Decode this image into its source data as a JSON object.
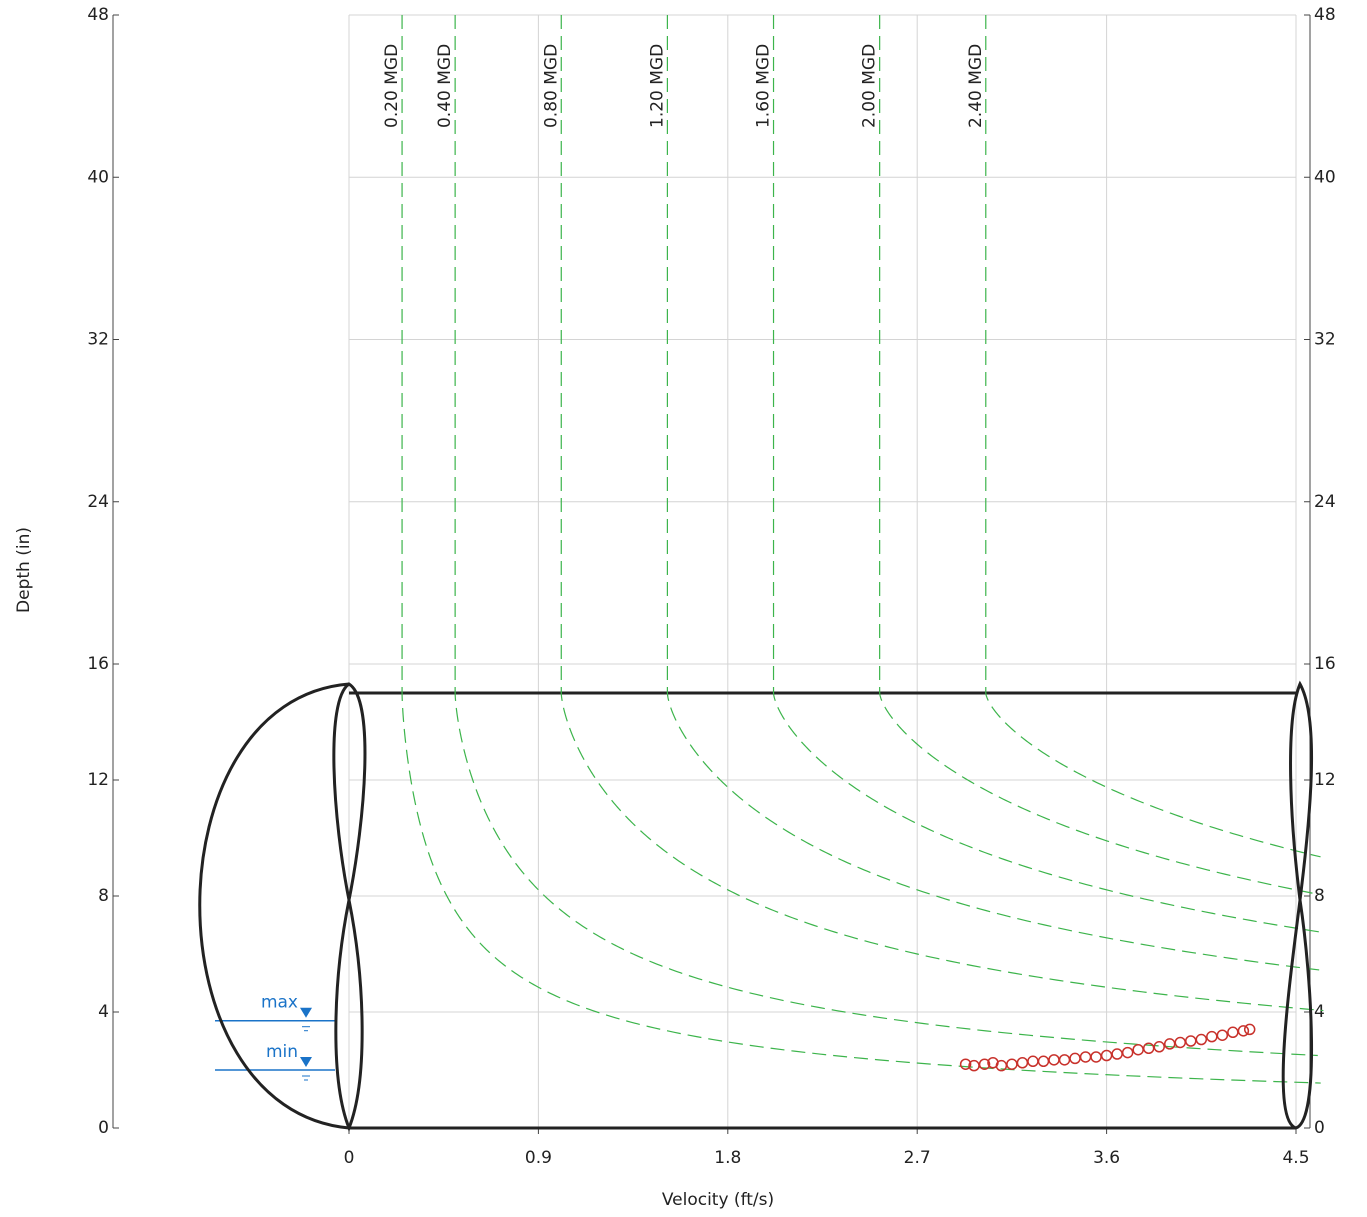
{
  "chart_data": {
    "type": "scattergraph",
    "x_label": "Velocity (ft/s)",
    "y_label": "Depth (in)",
    "xlim": [
      0,
      4.5
    ],
    "xticks": [
      0,
      0.9,
      1.8,
      2.7,
      3.6,
      4.5
    ],
    "ylim": [
      0,
      48
    ],
    "yticks": [
      0,
      4,
      8,
      12,
      16,
      24,
      32,
      40,
      48
    ],
    "grid": true,
    "pipe_diameter": 15,
    "flow_lines": [
      {
        "value": 0.2,
        "label": "0.20 MGD"
      },
      {
        "value": 0.4,
        "label": "0.40 MGD"
      },
      {
        "value": 0.8,
        "label": "0.80 MGD"
      },
      {
        "value": 1.2,
        "label": "1.20 MGD"
      },
      {
        "value": 1.6,
        "label": "1.60 MGD"
      },
      {
        "value": 2.0,
        "label": "2.00 MGD"
      },
      {
        "value": 2.4,
        "label": "2.40 MGD"
      }
    ],
    "flow_line_color": "#3cb44b",
    "levels": [
      {
        "label": "max",
        "value": 3.7
      },
      {
        "label": "min",
        "value": 2.0
      }
    ],
    "level_color": "#1a73c8",
    "series": [
      {
        "color": "#c8312b",
        "x": [
          2.93,
          2.97,
          3.02,
          3.06,
          3.1,
          3.15,
          3.2,
          3.25,
          3.3,
          3.35,
          3.4,
          3.45,
          3.5,
          3.55,
          3.6,
          3.65,
          3.7,
          3.75,
          3.8,
          3.85,
          3.9,
          3.95,
          4.0,
          4.05,
          4.1,
          4.15,
          4.2,
          4.25,
          4.28
        ],
        "values": [
          2.2,
          2.15,
          2.2,
          2.25,
          2.15,
          2.2,
          2.25,
          2.3,
          2.3,
          2.35,
          2.35,
          2.4,
          2.45,
          2.45,
          2.5,
          2.55,
          2.6,
          2.7,
          2.75,
          2.8,
          2.9,
          2.95,
          3.0,
          3.05,
          3.15,
          3.2,
          3.3,
          3.35,
          3.4
        ]
      }
    ]
  }
}
